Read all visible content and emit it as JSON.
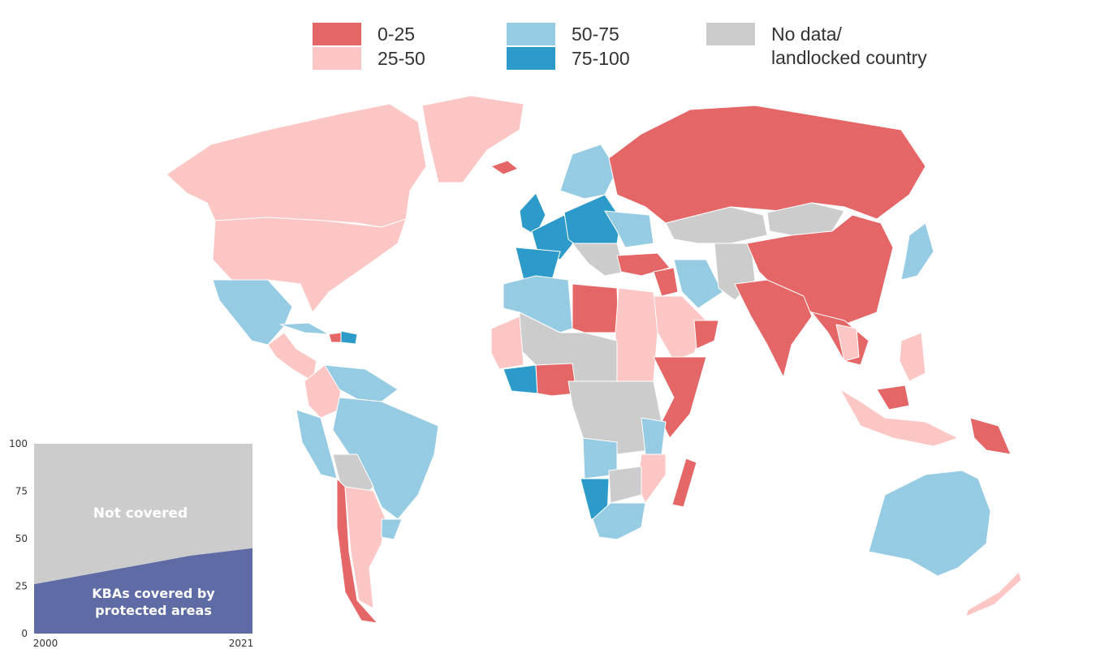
{
  "legend": {
    "items": [
      {
        "label": "0-25",
        "color": "#e56666"
      },
      {
        "label": "25-50",
        "color": "#fbc6c4"
      },
      {
        "label": "50-75",
        "color": "#95cbe3"
      },
      {
        "label": "75-100",
        "color": "#2d9bc9"
      },
      {
        "label": "No data/\nlandlocked country",
        "color": "#cccccc"
      }
    ]
  },
  "map": {
    "colors": {
      "c0": "#e56666",
      "c1": "#fbc6c4",
      "c2": "#95cbe3",
      "c3": "#2d9bc9",
      "nd": "#cccccc"
    }
  },
  "chart_data": {
    "type": "area",
    "x": [
      2000,
      2003,
      2006,
      2009,
      2012,
      2015,
      2018,
      2021
    ],
    "series": [
      {
        "name": "KBAs covered by protected areas",
        "values": [
          26,
          29,
          32,
          35,
          38,
          41,
          43,
          45
        ],
        "color": "#5f6ba5"
      },
      {
        "name": "Not covered",
        "values": [
          74,
          71,
          68,
          65,
          62,
          59,
          57,
          55
        ],
        "color": "#cccccc"
      }
    ],
    "annotations": {
      "top": "Not covered",
      "bottom_line1": "KBAs covered by",
      "bottom_line2": "protected areas"
    },
    "x_ticks": [
      "2000",
      "2021"
    ],
    "y_ticks": [
      "0",
      "25",
      "50",
      "75",
      "100"
    ],
    "ylim": [
      0,
      100
    ],
    "xlim": [
      2000,
      2021
    ]
  }
}
